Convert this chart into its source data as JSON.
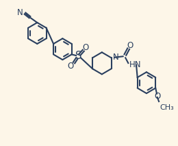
{
  "background_color": "#fdf6e8",
  "line_color": "#2a3f5f",
  "line_width": 1.5,
  "font_size": 8.5,
  "figsize": [
    2.6,
    2.13
  ],
  "dpi": 100,
  "xlim": [
    0,
    10
  ],
  "ylim": [
    0,
    8.2
  ]
}
